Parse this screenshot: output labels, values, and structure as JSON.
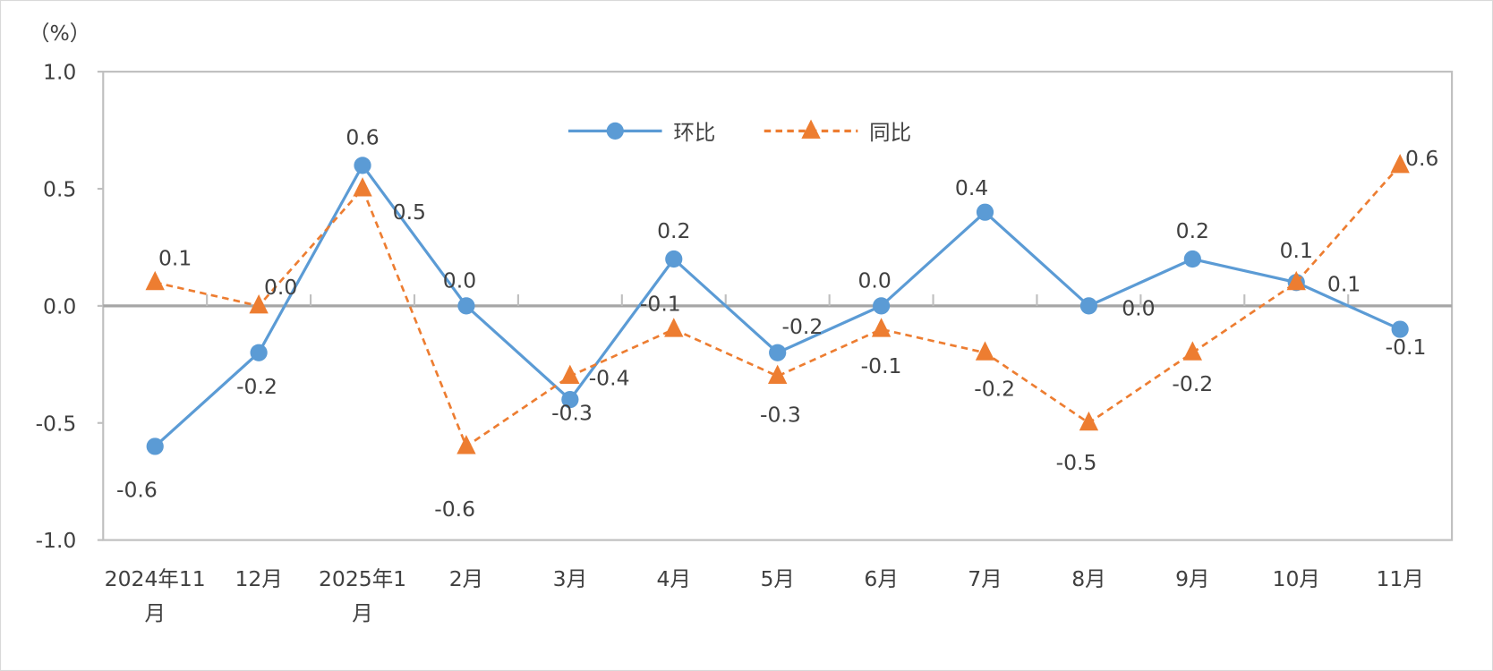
{
  "chart_data": {
    "type": "line",
    "unit_label": "（%）",
    "categories": [
      [
        "2024年11",
        "月"
      ],
      [
        "12月"
      ],
      [
        "2025年1",
        "月"
      ],
      [
        "2月"
      ],
      [
        "3月"
      ],
      [
        "4月"
      ],
      [
        "5月"
      ],
      [
        "6月"
      ],
      [
        "7月"
      ],
      [
        "8月"
      ],
      [
        "9月"
      ],
      [
        "10月"
      ],
      [
        "11月"
      ]
    ],
    "ylim": [
      -1.0,
      1.0
    ],
    "yticks": [
      "1.0",
      "0.5",
      "0.0",
      "-0.5",
      "-1.0"
    ],
    "ytick_values": [
      1.0,
      0.5,
      0.0,
      -0.5,
      -1.0
    ],
    "legend_position": "top-center",
    "series": [
      {
        "name": "环比",
        "color": "#5B9BD5",
        "style": "solid",
        "marker": "circle",
        "values": [
          -0.6,
          -0.2,
          0.6,
          0.0,
          -0.4,
          0.2,
          -0.2,
          0.0,
          0.4,
          0.0,
          0.2,
          0.1,
          -0.1
        ]
      },
      {
        "name": "同比",
        "color": "#ED7D31",
        "style": "dashed",
        "marker": "triangle",
        "values": [
          0.1,
          0.0,
          0.5,
          -0.6,
          -0.3,
          -0.1,
          -0.3,
          -0.1,
          -0.2,
          -0.5,
          -0.2,
          0.1,
          0.6
        ]
      }
    ]
  }
}
